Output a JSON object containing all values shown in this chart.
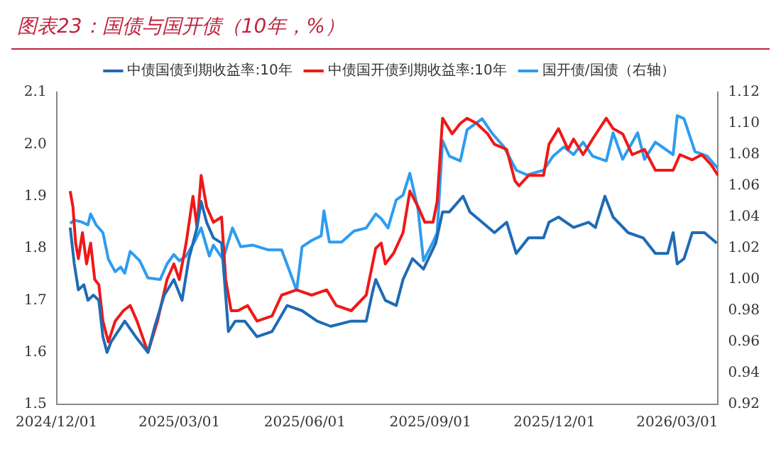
{
  "chart_data": {
    "type": "line",
    "title": "图表23：国债与国开债（10年，%）",
    "legend": "top",
    "grid": false,
    "marker": "none",
    "line_style": "solid",
    "xlim": [
      "2024-12-01",
      "2026-03-31"
    ],
    "xticks": [
      {
        "value": "2024-12-01",
        "label": "2024/12/01"
      },
      {
        "value": "2025-03-01",
        "label": "2025/03/01"
      },
      {
        "value": "2025-06-01",
        "label": "2025/06/01"
      },
      {
        "value": "2025-09-01",
        "label": "2025/09/01"
      },
      {
        "value": "2025-12-01",
        "label": "2025/12/01"
      },
      {
        "value": "2026-03-01",
        "label": "2026/03/01"
      }
    ],
    "ylim": [
      1.5,
      2.1
    ],
    "yticks": [
      1.5,
      1.6,
      1.7,
      1.8,
      1.9,
      {
        "value": 2,
        "label": "2.0"
      },
      2.1
    ],
    "y2lim": [
      0.92,
      1.12
    ],
    "y2ticks": [
      0.92,
      0.94,
      0.96,
      0.98,
      {
        "value": 1,
        "label": "1.00"
      },
      1.02,
      1.04,
      1.06,
      1.08,
      {
        "value": 1.1,
        "label": "1.10"
      },
      1.12
    ],
    "series": [
      {
        "name": "中债国债到期收益率:10年",
        "color": "#1f6bb5",
        "x": [
          "2024-12-11",
          "2024-12-14",
          "2024-12-17",
          "2024-12-21",
          "2024-12-24",
          "2024-12-28",
          "2025-01-01",
          "2025-01-04",
          "2025-01-07",
          "2025-01-10",
          "2025-01-15",
          "2025-01-20",
          "2025-01-28",
          "2025-02-06",
          "2025-02-11",
          "2025-02-18",
          "2025-02-25",
          "2025-03-03",
          "2025-03-08",
          "2025-03-14",
          "2025-03-17",
          "2025-03-21",
          "2025-03-26",
          "2025-04-01",
          "2025-04-06",
          "2025-04-11",
          "2025-04-18",
          "2025-04-27",
          "2025-05-08",
          "2025-05-19",
          "2025-05-30",
          "2025-06-10",
          "2025-06-20",
          "2025-07-05",
          "2025-07-16",
          "2025-07-21",
          "2025-07-23",
          "2025-07-30",
          "2025-08-07",
          "2025-08-12",
          "2025-08-19",
          "2025-08-27",
          "2025-09-05",
          "2025-09-10",
          "2025-09-15",
          "2025-09-25",
          "2025-09-30",
          "2025-10-09",
          "2025-10-18",
          "2025-10-27",
          "2025-11-03",
          "2025-11-12",
          "2025-11-23",
          "2025-11-27",
          "2025-12-04",
          "2025-12-15",
          "2025-12-26",
          "2025-12-31",
          "2026-01-07",
          "2026-01-13",
          "2026-01-24",
          "2026-02-04",
          "2026-02-13",
          "2026-02-22",
          "2026-02-26",
          "2026-03-01",
          "2026-03-06",
          "2026-03-12",
          "2026-03-21",
          "2026-03-30"
        ],
        "values": [
          1.84,
          1.77,
          1.72,
          1.73,
          1.7,
          1.71,
          1.7,
          1.63,
          1.6,
          1.62,
          1.64,
          1.66,
          1.63,
          1.6,
          1.65,
          1.71,
          1.74,
          1.7,
          1.78,
          1.84,
          1.89,
          1.85,
          1.82,
          1.81,
          1.64,
          1.66,
          1.66,
          1.63,
          1.64,
          1.69,
          1.68,
          1.66,
          1.65,
          1.66,
          1.66,
          1.72,
          1.74,
          1.7,
          1.69,
          1.74,
          1.78,
          1.76,
          1.81,
          1.87,
          1.87,
          1.9,
          1.87,
          1.85,
          1.83,
          1.85,
          1.79,
          1.82,
          1.82,
          1.85,
          1.86,
          1.84,
          1.85,
          1.84,
          1.9,
          1.86,
          1.83,
          1.82,
          1.79,
          1.79,
          1.83,
          1.77,
          1.78,
          1.83,
          1.83,
          1.81
        ]
      },
      {
        "name": "中债国开债到期收益率:10年",
        "color": "#f01818",
        "x": [
          "2024-12-11",
          "2024-12-13",
          "2024-12-15",
          "2024-12-17",
          "2024-12-20",
          "2024-12-23",
          "2024-12-26",
          "2024-12-29",
          "2025-01-01",
          "2025-01-04",
          "2025-01-08",
          "2025-01-13",
          "2025-01-19",
          "2025-01-24",
          "2025-01-29",
          "2025-02-06",
          "2025-02-13",
          "2025-02-20",
          "2025-02-25",
          "2025-03-01",
          "2025-03-06",
          "2025-03-11",
          "2025-03-14",
          "2025-03-17",
          "2025-03-21",
          "2025-03-26",
          "2025-04-01",
          "2025-04-04",
          "2025-04-08",
          "2025-04-13",
          "2025-04-20",
          "2025-04-27",
          "2025-05-08",
          "2025-05-15",
          "2025-05-26",
          "2025-06-06",
          "2025-06-17",
          "2025-06-24",
          "2025-07-05",
          "2025-07-16",
          "2025-07-23",
          "2025-07-27",
          "2025-07-30",
          "2025-08-05",
          "2025-08-12",
          "2025-08-17",
          "2025-08-23",
          "2025-08-28",
          "2025-09-03",
          "2025-09-06",
          "2025-09-10",
          "2025-09-17",
          "2025-09-23",
          "2025-09-28",
          "2025-10-05",
          "2025-10-13",
          "2025-10-18",
          "2025-10-27",
          "2025-11-02",
          "2025-11-05",
          "2025-11-12",
          "2025-11-23",
          "2025-11-27",
          "2025-12-04",
          "2025-12-11",
          "2025-12-15",
          "2025-12-22",
          "2025-12-29",
          "2026-01-08",
          "2026-01-13",
          "2026-01-20",
          "2026-01-27",
          "2026-02-05",
          "2026-02-13",
          "2026-02-26",
          "2026-03-03",
          "2026-03-12",
          "2026-03-19",
          "2026-03-26",
          "2026-03-31"
        ],
        "values": [
          1.91,
          1.88,
          1.81,
          1.78,
          1.83,
          1.77,
          1.81,
          1.74,
          1.73,
          1.66,
          1.62,
          1.66,
          1.68,
          1.69,
          1.66,
          1.6,
          1.66,
          1.74,
          1.77,
          1.74,
          1.81,
          1.9,
          1.84,
          1.94,
          1.88,
          1.85,
          1.86,
          1.74,
          1.68,
          1.68,
          1.69,
          1.66,
          1.67,
          1.71,
          1.72,
          1.71,
          1.72,
          1.69,
          1.68,
          1.71,
          1.8,
          1.81,
          1.77,
          1.79,
          1.83,
          1.91,
          1.88,
          1.85,
          1.85,
          1.89,
          2.05,
          2.02,
          2.04,
          2.05,
          2.04,
          2.02,
          2.0,
          1.99,
          1.93,
          1.92,
          1.94,
          1.94,
          2.0,
          2.03,
          1.99,
          2.01,
          1.98,
          2.01,
          2.05,
          2.03,
          2.02,
          1.98,
          1.99,
          1.95,
          1.95,
          1.98,
          1.97,
          1.98,
          1.96,
          1.94
        ]
      },
      {
        "name": "国开债/国债（右轴）",
        "color": "#2e9cf0",
        "axis": "y2",
        "x": [
          "2024-12-11",
          "2024-12-14",
          "2024-12-19",
          "2024-12-24",
          "2024-12-26",
          "2024-12-30",
          "2025-01-04",
          "2025-01-08",
          "2025-01-13",
          "2025-01-17",
          "2025-01-20",
          "2025-01-24",
          "2025-01-31",
          "2025-02-06",
          "2025-02-15",
          "2025-02-20",
          "2025-02-25",
          "2025-03-01",
          "2025-03-06",
          "2025-03-12",
          "2025-03-17",
          "2025-03-23",
          "2025-03-26",
          "2025-04-02",
          "2025-04-09",
          "2025-04-15",
          "2025-04-24",
          "2025-05-05",
          "2025-05-15",
          "2025-05-21",
          "2025-05-26",
          "2025-05-30",
          "2025-06-06",
          "2025-06-13",
          "2025-06-15",
          "2025-06-19",
          "2025-06-28",
          "2025-07-07",
          "2025-07-16",
          "2025-07-23",
          "2025-07-27",
          "2025-08-01",
          "2025-08-07",
          "2025-08-12",
          "2025-08-17",
          "2025-08-23",
          "2025-08-27",
          "2025-09-03",
          "2025-09-06",
          "2025-09-10",
          "2025-09-15",
          "2025-09-23",
          "2025-09-28",
          "2025-10-09",
          "2025-10-16",
          "2025-10-25",
          "2025-11-03",
          "2025-11-11",
          "2025-11-23",
          "2025-11-30",
          "2025-12-08",
          "2025-12-15",
          "2025-12-22",
          "2025-12-29",
          "2026-01-08",
          "2026-01-13",
          "2026-01-20",
          "2026-01-31",
          "2026-02-05",
          "2026-02-13",
          "2026-02-26",
          "2026-03-01",
          "2026-03-06",
          "2026-03-14",
          "2026-03-23",
          "2026-03-31"
        ],
        "values": [
          1.036,
          1.038,
          1.037,
          1.035,
          1.042,
          1.035,
          1.03,
          1.013,
          1.005,
          1.008,
          1.004,
          1.018,
          1.012,
          1.001,
          1.0,
          1.01,
          1.016,
          1.012,
          1.015,
          1.024,
          1.033,
          1.015,
          1.022,
          1.013,
          1.033,
          1.021,
          1.022,
          1.019,
          1.019,
          1.005,
          0.993,
          1.021,
          1.025,
          1.028,
          1.044,
          1.024,
          1.024,
          1.031,
          1.033,
          1.042,
          1.039,
          1.033,
          1.051,
          1.054,
          1.068,
          1.045,
          1.012,
          1.024,
          1.03,
          1.089,
          1.079,
          1.076,
          1.096,
          1.103,
          1.094,
          1.085,
          1.07,
          1.067,
          1.07,
          1.079,
          1.085,
          1.08,
          1.088,
          1.079,
          1.076,
          1.094,
          1.077,
          1.094,
          1.077,
          1.088,
          1.08,
          1.105,
          1.103,
          1.082,
          1.079,
          1.071
        ]
      }
    ]
  }
}
